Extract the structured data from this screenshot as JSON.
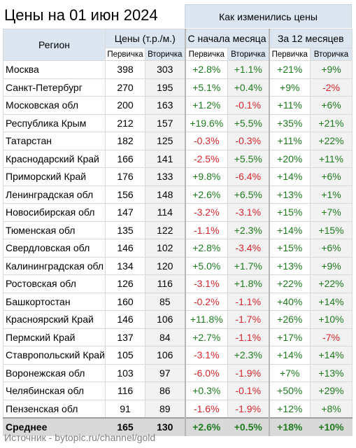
{
  "title": "Цены на 01 июн 2024",
  "change_header": "Как изменились цены",
  "headers": {
    "region": "Регион",
    "prices": "Цены (т.р./м.)",
    "since_month": "С начала месяца",
    "twelve_months": "За 12 месяцев",
    "primary": "Первичка",
    "secondary": "Вторичка"
  },
  "rows": [
    {
      "region": "Москва",
      "p1": "398",
      "p2": "303",
      "m1": "+2.8%",
      "m2": "+1.1%",
      "y1": "+21%",
      "y2": "+9%"
    },
    {
      "region": "Санкт-Петербург",
      "p1": "270",
      "p2": "195",
      "m1": "+5.1%",
      "m2": "+0.4%",
      "y1": "+9%",
      "y2": "-2%"
    },
    {
      "region": "Московская обл",
      "p1": "200",
      "p2": "163",
      "m1": "+1.2%",
      "m2": "-0.1%",
      "y1": "+11%",
      "y2": "+6%"
    },
    {
      "region": "Республика Крым",
      "p1": "212",
      "p2": "157",
      "m1": "+19.6%",
      "m2": "+5.5%",
      "y1": "+35%",
      "y2": "+21%"
    },
    {
      "region": "Татарстан",
      "p1": "182",
      "p2": "125",
      "m1": "-0.3%",
      "m2": "-0.3%",
      "y1": "+11%",
      "y2": "+22%"
    },
    {
      "region": "Краснодарский Край",
      "p1": "166",
      "p2": "141",
      "m1": "-2.5%",
      "m2": "+5.5%",
      "y1": "+20%",
      "y2": "+11%"
    },
    {
      "region": "Приморский Край",
      "p1": "176",
      "p2": "133",
      "m1": "+9.8%",
      "m2": "-6.4%",
      "y1": "+14%",
      "y2": "+6%"
    },
    {
      "region": "Ленинградская обл",
      "p1": "156",
      "p2": "148",
      "m1": "+2.6%",
      "m2": "+6.5%",
      "y1": "+13%",
      "y2": "+1%"
    },
    {
      "region": "Новосибирская обл",
      "p1": "147",
      "p2": "114",
      "m1": "-3.2%",
      "m2": "-3.1%",
      "y1": "+15%",
      "y2": "+7%"
    },
    {
      "region": "Тюменская обл",
      "p1": "135",
      "p2": "122",
      "m1": "-1.1%",
      "m2": "+2.3%",
      "y1": "+14%",
      "y2": "+15%"
    },
    {
      "region": "Свердловская обл",
      "p1": "146",
      "p2": "102",
      "m1": "+2.8%",
      "m2": "-3.4%",
      "y1": "+15%",
      "y2": "+6%"
    },
    {
      "region": "Калининградская обл",
      "p1": "134",
      "p2": "120",
      "m1": "+5.0%",
      "m2": "+1.7%",
      "y1": "+13%",
      "y2": "+9%"
    },
    {
      "region": "Ростовская обл",
      "p1": "126",
      "p2": "116",
      "m1": "-3.1%",
      "m2": "+1.8%",
      "y1": "+22%",
      "y2": "+22%"
    },
    {
      "region": "Башкортостан",
      "p1": "160",
      "p2": "85",
      "m1": "-0.2%",
      "m2": "-1.1%",
      "y1": "+40%",
      "y2": "+14%"
    },
    {
      "region": "Красноярский Край",
      "p1": "146",
      "p2": "106",
      "m1": "+11.8%",
      "m2": "-1.7%",
      "y1": "+26%",
      "y2": "+10%"
    },
    {
      "region": "Пермский Край",
      "p1": "137",
      "p2": "84",
      "m1": "+2.7%",
      "m2": "-1.1%",
      "y1": "+17%",
      "y2": "-7%"
    },
    {
      "region": "Ставропольский Край",
      "p1": "105",
      "p2": "106",
      "m1": "-3.1%",
      "m2": "+2.3%",
      "y1": "+14%",
      "y2": "+14%"
    },
    {
      "region": "Воронежская обл",
      "p1": "103",
      "p2": "97",
      "m1": "-6.0%",
      "m2": "-1.9%",
      "y1": "+7%",
      "y2": "+13%"
    },
    {
      "region": "Челябинская обл",
      "p1": "116",
      "p2": "86",
      "m1": "+0.3%",
      "m2": "-0.1%",
      "y1": "+50%",
      "y2": "+29%"
    },
    {
      "region": "Пензенская обл",
      "p1": "91",
      "p2": "89",
      "m1": "-1.6%",
      "m2": "-1.9%",
      "y1": "+12%",
      "y2": "+8%"
    }
  ],
  "average": {
    "region": "Среднее",
    "p1": "165",
    "p2": "130",
    "m1": "+2.6%",
    "m2": "+0.5%",
    "y1": "+18%",
    "y2": "+10%"
  },
  "source": "Источник - bytopic.ru/channel/gold",
  "colors": {
    "positive": "#1e7b1e",
    "negative": "#d6262b",
    "header_bg": "#dce6f1"
  }
}
